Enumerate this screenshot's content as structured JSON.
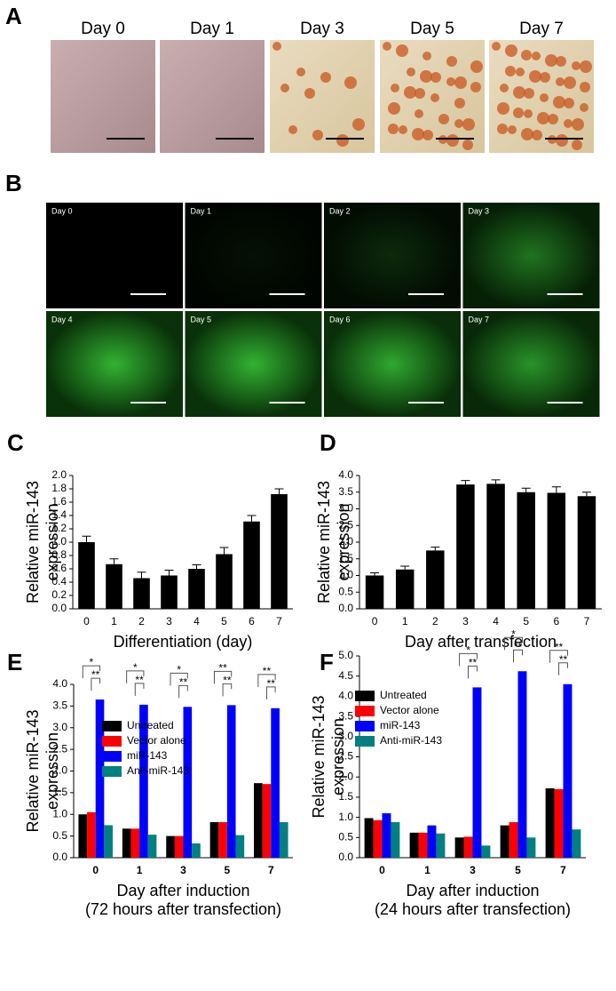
{
  "panel_a": {
    "letter": "A",
    "images": [
      "Day 0",
      "Day 1",
      "Day 3",
      "Day 5",
      "Day 7"
    ]
  },
  "panel_b": {
    "letter": "B",
    "images": [
      "Day 0",
      "Day 1",
      "Day 2",
      "Day 3",
      "Day 4",
      "Day 5",
      "Day 6",
      "Day 7"
    ]
  },
  "chart_data": [
    {
      "type": "bar",
      "panel": "C",
      "y_label": [
        "Relative miR-143",
        "expression"
      ],
      "x_label": [
        "Differentiation (day)"
      ],
      "categories": [
        "0",
        "1",
        "2",
        "3",
        "4",
        "5",
        "6",
        "7"
      ],
      "values": [
        1.0,
        0.67,
        0.46,
        0.5,
        0.6,
        0.82,
        1.31,
        1.72
      ],
      "errors": [
        0.09,
        0.08,
        0.09,
        0.08,
        0.06,
        0.1,
        0.09,
        0.08
      ],
      "color": "#000000",
      "ylim": [
        0,
        2.0
      ],
      "yticks": [
        {
          "value": 0,
          "label": "0.0"
        },
        0.2,
        0.4,
        0.6,
        0.8,
        {
          "value": 1,
          "label": "1.0"
        },
        1.2,
        1.4,
        1.6,
        1.8,
        {
          "value": 2,
          "label": "2.0"
        }
      ]
    },
    {
      "type": "bar",
      "panel": "D",
      "y_label": [
        "Relative miR-143",
        "expression"
      ],
      "x_label": [
        "Day after transfection"
      ],
      "categories": [
        "0",
        "1",
        "2",
        "3",
        "4",
        "5",
        "6",
        "7"
      ],
      "values": [
        1.0,
        1.18,
        1.75,
        3.73,
        3.75,
        3.5,
        3.48,
        3.38
      ],
      "errors": [
        0.08,
        0.1,
        0.1,
        0.12,
        0.12,
        0.12,
        0.18,
        0.12
      ],
      "color": "#000000",
      "ylim": [
        0,
        4.0
      ],
      "yticks": [
        {
          "value": 0,
          "label": "0.0"
        },
        0.5,
        {
          "value": 1,
          "label": "1.0"
        },
        1.5,
        {
          "value": 2,
          "label": "2.0"
        },
        2.5,
        {
          "value": 3,
          "label": "3.0"
        },
        3.5,
        {
          "value": 4,
          "label": "4.0"
        }
      ]
    },
    {
      "type": "grouped_bar",
      "panel": "E",
      "y_label": [
        "Relative miR-143",
        "expression"
      ],
      "x_label": [
        "Day after induction",
        "(72 hours after transfection)"
      ],
      "categories": [
        "0",
        "1",
        "3",
        "5",
        "7"
      ],
      "series": [
        {
          "name": "Untreated",
          "color": "#000000",
          "values": [
            1.0,
            0.67,
            0.5,
            0.82,
            1.72
          ]
        },
        {
          "name": "Vector alone",
          "color": "#ff0000",
          "values": [
            1.05,
            0.67,
            0.5,
            0.82,
            1.7
          ]
        },
        {
          "name": "miR-143",
          "color": "#0000ff",
          "values": [
            3.65,
            3.53,
            3.48,
            3.52,
            3.45
          ]
        },
        {
          "name": "Anti-miR-143",
          "color": "#008080",
          "values": [
            0.75,
            0.53,
            0.33,
            0.52,
            0.82
          ]
        }
      ],
      "significance": [
        [
          "*",
          "**"
        ],
        [
          "*",
          "**"
        ],
        [
          "*",
          "**"
        ],
        [
          "**",
          "**"
        ],
        [
          "**",
          "**"
        ]
      ],
      "ylim": [
        0,
        4.0
      ],
      "yticks": [
        {
          "value": 0,
          "label": "0.0"
        },
        0.5,
        {
          "value": 1,
          "label": "1.0"
        },
        1.5,
        {
          "value": 2,
          "label": "2.0"
        },
        2.5,
        {
          "value": 3,
          "label": "3.0"
        },
        3.5,
        {
          "value": 4,
          "label": "4.0"
        }
      ]
    },
    {
      "type": "grouped_bar",
      "panel": "F",
      "y_label": [
        "Relative miR-143",
        "expression"
      ],
      "x_label": [
        "Day after induction",
        "(24 hours after transfection)"
      ],
      "categories": [
        "0",
        "1",
        "3",
        "5",
        "7"
      ],
      "series": [
        {
          "name": "Untreated",
          "color": "#000000",
          "values": [
            0.98,
            0.62,
            0.5,
            0.8,
            1.72
          ]
        },
        {
          "name": "Vector alone",
          "color": "#ff0000",
          "values": [
            0.93,
            0.62,
            0.52,
            0.88,
            1.7
          ]
        },
        {
          "name": "miR-143",
          "color": "#0000ff",
          "values": [
            1.1,
            0.8,
            4.22,
            4.62,
            4.3
          ]
        },
        {
          "name": "Anti-miR-143",
          "color": "#008080",
          "values": [
            0.88,
            0.6,
            0.3,
            0.5,
            0.7
          ]
        }
      ],
      "significance": [
        [],
        [],
        [
          "*",
          "**"
        ],
        [
          "*",
          "**"
        ],
        [
          "**",
          "**"
        ]
      ],
      "ylim": [
        0,
        5.0
      ],
      "yticks": [
        {
          "value": 0,
          "label": "0.0"
        },
        0.5,
        {
          "value": 1,
          "label": "1.0"
        },
        1.5,
        {
          "value": 2,
          "label": "2.0"
        },
        2.5,
        {
          "value": 3,
          "label": "3.0"
        },
        3.5,
        {
          "value": 4,
          "label": "4.0"
        },
        4.5,
        {
          "value": 5,
          "label": "5.0"
        }
      ]
    }
  ]
}
